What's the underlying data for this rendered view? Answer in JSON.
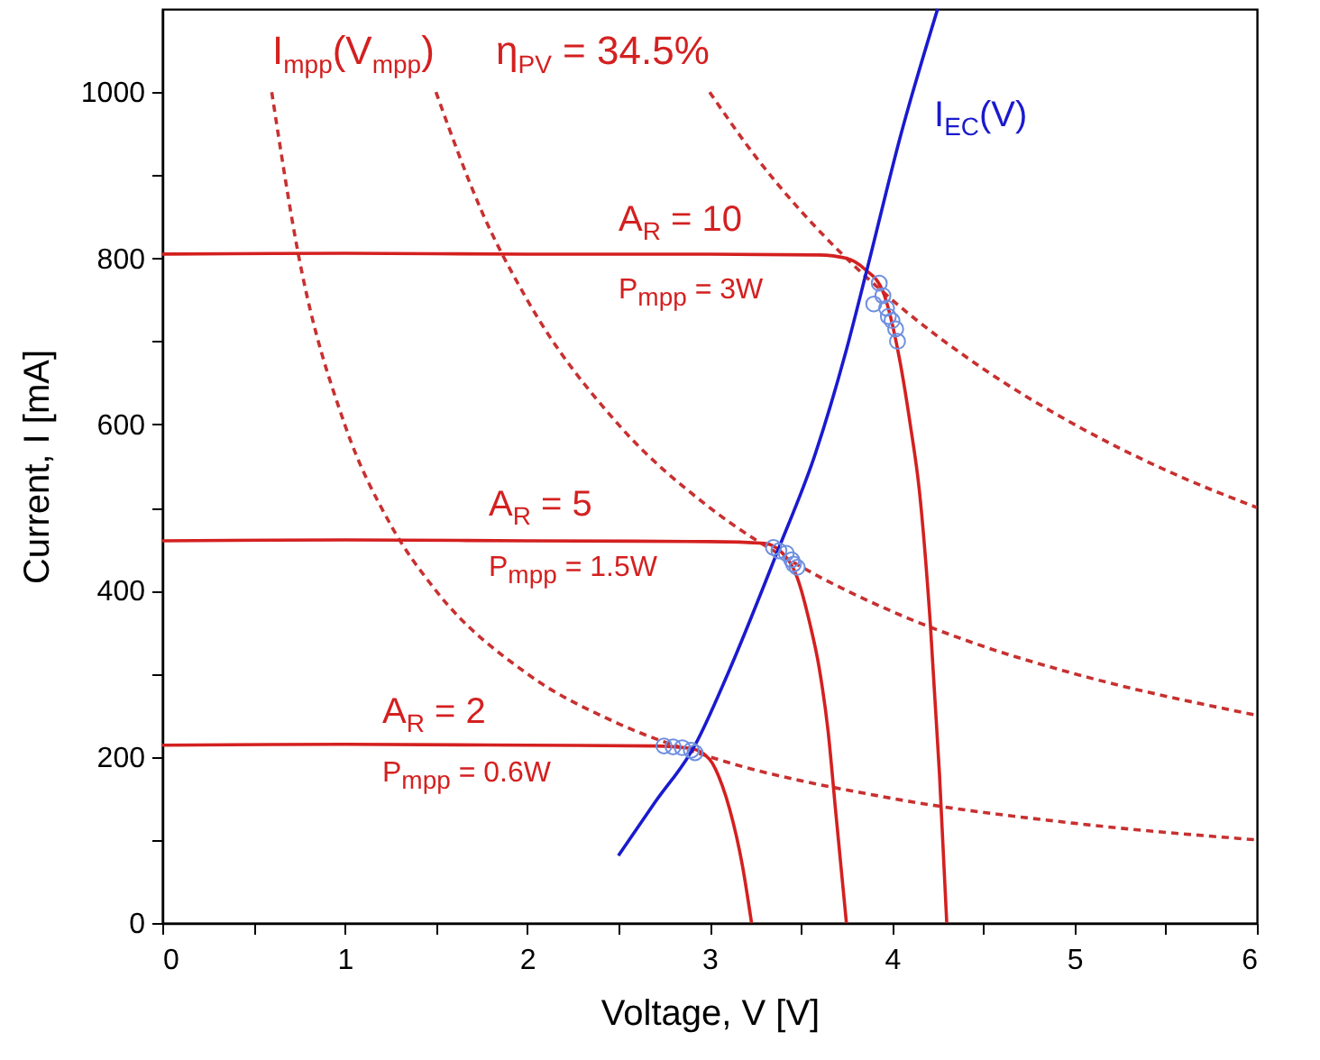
{
  "chart_data": {
    "type": "line",
    "xlabel": "Voltage, V [V]",
    "ylabel": "Current, I [mA]",
    "xlim": [
      0,
      6
    ],
    "ylim": [
      0,
      1100
    ],
    "xticks": [
      0,
      {
        "value": 0.5,
        "label": null
      },
      1,
      {
        "value": 1.5,
        "label": null
      },
      2,
      {
        "value": 2.5,
        "label": null
      },
      3,
      {
        "value": 3.5,
        "label": null
      },
      4,
      {
        "value": 4.5,
        "label": null
      },
      5,
      {
        "value": 5.5,
        "label": null
      },
      6
    ],
    "yticks": [
      0,
      {
        "value": 100,
        "label": null
      },
      200,
      {
        "value": 300,
        "label": null
      },
      400,
      {
        "value": 500,
        "label": null
      },
      600,
      {
        "value": 700,
        "label": null
      },
      800,
      {
        "value": 900,
        "label": null
      },
      1000
    ],
    "grid": false,
    "series": [
      {
        "line_style": "dashed",
        "color": "#c83030",
        "x": [
          0.6,
          0.75,
          1,
          1.25,
          1.5,
          2,
          2.5,
          3,
          4,
          5,
          6
        ],
        "values": [
          1000,
          800,
          600,
          480,
          400,
          300,
          240,
          200,
          150,
          120,
          100
        ]
      },
      {
        "line_style": "dashed",
        "color": "#c83030",
        "x": [
          1.5,
          1.75,
          2,
          2.5,
          3,
          3.5,
          4,
          4.5,
          5,
          6
        ],
        "values": [
          1000,
          857,
          750,
          600,
          500,
          429,
          375,
          333,
          300,
          250
        ]
      },
      {
        "line_style": "dashed",
        "color": "#c83030",
        "x": [
          3,
          3.25,
          3.5,
          3.75,
          4,
          4.5,
          5,
          5.5,
          6
        ],
        "values": [
          1000,
          923,
          857,
          800,
          750,
          667,
          600,
          545,
          500
        ]
      },
      {
        "line_style": "solid",
        "color": "#d42020",
        "x": [
          0,
          1,
          2,
          3,
          3.6,
          3.75,
          3.85,
          3.95,
          4.04,
          4.1,
          4.15,
          4.21,
          4.26,
          4.3
        ],
        "values": [
          805,
          806,
          805,
          805,
          804,
          800,
          787,
          760,
          680,
          600,
          520,
          360,
          180,
          0
        ]
      },
      {
        "line_style": "solid",
        "color": "#d42020",
        "x": [
          0,
          1,
          2,
          3,
          3.3,
          3.4,
          3.48,
          3.55,
          3.6,
          3.65,
          3.69,
          3.75
        ],
        "values": [
          460,
          461,
          460,
          459,
          457,
          445,
          416,
          360,
          308,
          230,
          137,
          0
        ]
      },
      {
        "line_style": "solid",
        "color": "#d42020",
        "x": [
          0,
          1,
          2,
          2.7,
          2.9,
          3.0,
          3.07,
          3.11,
          3.18,
          3.23
        ],
        "values": [
          214,
          215,
          214,
          213,
          210,
          197,
          165,
          137,
          69,
          0
        ]
      },
      {
        "line_style": "solid",
        "color": "#1a1acf",
        "x": [
          2.5,
          2.7,
          2.92,
          3.1,
          3.37,
          3.58,
          3.75,
          3.86,
          4.05,
          4.25
        ],
        "values": [
          81,
          145,
          214,
          300,
          446,
          565,
          690,
          784,
          950,
          1100
        ]
      },
      {
        "type": "scatter",
        "marker": "circle",
        "color": "#6f8fe0",
        "x": [
          2.75,
          2.8,
          2.85,
          2.9,
          2.92,
          3.35,
          3.38,
          3.42,
          3.45,
          3.48,
          3.46,
          3.9,
          3.93,
          3.95,
          3.97,
          4.0,
          4.02,
          4.03,
          3.98
        ],
        "values": [
          213,
          212,
          211,
          208,
          205,
          452,
          448,
          445,
          437,
          428,
          432,
          745,
          770,
          755,
          740,
          725,
          715,
          700,
          730
        ]
      }
    ],
    "annotations": [
      "I$_{mpp}$(V$_{mpp}$)",
      "η$_{PV}$ = 34.5%",
      "I$_{EC}$(V)",
      "A$_{R}$ = 10",
      "P$_{mpp}$ = 3W",
      "A$_{R}$ = 5",
      "P$_{mpp}$ = 1.5W",
      "A$_{R}$ = 2",
      "P$_{mpp}$ = 0.6W"
    ]
  }
}
